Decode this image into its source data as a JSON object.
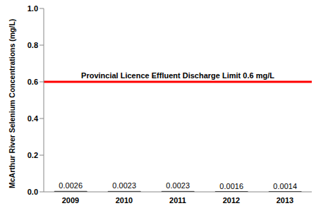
{
  "chart_data": {
    "type": "bar",
    "y_label": "McArthur River Selenium Concentrations (mg/L)",
    "categories": [
      "2009",
      "2010",
      "2011",
      "2012",
      "2013"
    ],
    "values": [
      0.0026,
      0.0023,
      0.0023,
      0.0016,
      0.0014
    ],
    "color": "#000000",
    "ylim": [
      0,
      1
    ],
    "yticks": [
      {
        "value": 0,
        "label": "0.0"
      },
      0.2,
      0.4,
      0.6,
      0.8,
      {
        "value": 1,
        "label": "1.0"
      }
    ],
    "grid": false,
    "data_labels": true,
    "reference_line": {
      "value": 0.6,
      "label": "Provincial Licence Effluent Discharge Limit 0.6 mg/L",
      "color": "#ff0000"
    }
  }
}
